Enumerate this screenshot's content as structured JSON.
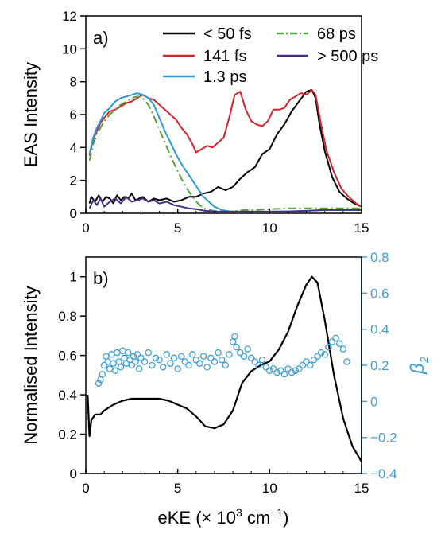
{
  "colors": {
    "black": "#000000",
    "red": "#d0262b",
    "blue": "#2b9ad8",
    "green": "#54a33b",
    "purple": "#4a2d8a",
    "beta": "#3f9fd4"
  },
  "shared_x": {
    "label_prefix": "eKE (× 10",
    "label_sup": "3",
    "label_mid": " cm",
    "label_sup2": "−1",
    "label_suffix": ")"
  },
  "chart_data": [
    {
      "panel": "a)",
      "type": "line",
      "ylabel": "EAS Intensity",
      "xlim": [
        0,
        15
      ],
      "ylim": [
        0,
        12
      ],
      "xticks": [
        0,
        5,
        10,
        15
      ],
      "yticks": [
        0,
        2,
        4,
        6,
        8,
        10,
        12
      ],
      "legend_placement": "top-right",
      "series": [
        {
          "name": "< 50 fs",
          "color": "#000000",
          "dash": "",
          "x": [
            0.2,
            0.3,
            0.5,
            0.7,
            0.9,
            1.1,
            1.3,
            1.5,
            1.7,
            1.9,
            2.1,
            2.3,
            2.5,
            2.7,
            2.9,
            3.1,
            3.4,
            3.7,
            4,
            4.4,
            4.8,
            5.2,
            5.6,
            6,
            6.4,
            6.8,
            7.2,
            7.6,
            8,
            8.4,
            8.8,
            9.2,
            9.6,
            10,
            10.4,
            10.8,
            11.2,
            11.6,
            12,
            12.3,
            12.5,
            12.7,
            13,
            13.4,
            13.8,
            14.2,
            14.6,
            15
          ],
          "y": [
            0.6,
            1.0,
            0.7,
            1.1,
            0.7,
            1.0,
            0.9,
            0.6,
            1.1,
            0.8,
            1.0,
            0.9,
            1.2,
            0.8,
            0.9,
            1.0,
            0.7,
            0.9,
            0.8,
            0.9,
            0.7,
            0.8,
            1.0,
            1.0,
            1.2,
            1.3,
            1.6,
            1.4,
            1.6,
            2.1,
            2.5,
            2.8,
            3.6,
            3.9,
            4.8,
            5.4,
            6.2,
            6.8,
            7.4,
            7.5,
            7.0,
            5.5,
            3.8,
            2.2,
            1.3,
            0.9,
            0.6,
            0.4
          ]
        },
        {
          "name": "141 fs",
          "color": "#d0262b",
          "dash": "",
          "x": [
            0.2,
            0.4,
            0.6,
            0.8,
            1,
            1.3,
            1.6,
            1.9,
            2.2,
            2.5,
            2.8,
            3.1,
            3.4,
            3.7,
            4,
            4.3,
            4.6,
            4.9,
            5.2,
            5.5,
            5.8,
            6,
            6.3,
            6.6,
            6.9,
            7.2,
            7.5,
            7.8,
            8.1,
            8.4,
            8.7,
            9,
            9.3,
            9.6,
            9.9,
            10.2,
            10.5,
            10.8,
            11.1,
            11.4,
            11.7,
            12,
            12.3,
            12.5,
            12.8,
            13.1,
            13.5,
            13.9,
            14.3,
            14.7,
            15
          ],
          "y": [
            3.5,
            4.5,
            5.0,
            5.5,
            5.8,
            6.2,
            6.3,
            6.5,
            6.7,
            6.8,
            7.0,
            7.2,
            7.0,
            6.9,
            6.6,
            6.3,
            6.0,
            5.7,
            5.2,
            4.8,
            4.2,
            3.7,
            3.9,
            4.1,
            4.0,
            4.3,
            4.6,
            5.8,
            7.2,
            7.4,
            6.3,
            5.6,
            5.4,
            5.3,
            5.6,
            6.3,
            6.3,
            6.4,
            6.9,
            7.1,
            7.3,
            7.2,
            7.5,
            7.2,
            5.4,
            3.8,
            2.5,
            1.5,
            1.0,
            0.6,
            0.4
          ]
        },
        {
          "name": "1.3 ps",
          "color": "#2b9ad8",
          "dash": "",
          "x": [
            0.2,
            0.4,
            0.6,
            0.8,
            1,
            1.3,
            1.6,
            1.9,
            2.2,
            2.5,
            2.8,
            3.1,
            3.4,
            3.7,
            4,
            4.3,
            4.6,
            4.9,
            5.2,
            5.5,
            5.8,
            6.1,
            6.4,
            6.7,
            7,
            7.4,
            7.8,
            8.2,
            8.6,
            9,
            10,
            11,
            12,
            13,
            14,
            15
          ],
          "y": [
            3.6,
            4.6,
            5.2,
            5.6,
            6.1,
            6.4,
            6.8,
            7.0,
            7.1,
            7.2,
            7.3,
            7.2,
            7.0,
            6.6,
            5.8,
            5.0,
            4.3,
            3.6,
            3.0,
            2.5,
            2.0,
            1.5,
            1.0,
            0.7,
            0.4,
            0.2,
            0.12,
            0.1,
            0.1,
            0.1,
            0.1,
            0.12,
            0.15,
            0.2,
            0.2,
            0.2
          ]
        },
        {
          "name": "68 ps",
          "color": "#54a33b",
          "dash": "10,4,2,4",
          "x": [
            0.2,
            0.4,
            0.6,
            0.8,
            1,
            1.3,
            1.6,
            1.9,
            2.2,
            2.5,
            2.8,
            3.1,
            3.4,
            3.7,
            4,
            4.3,
            4.6,
            4.9,
            5.2,
            5.5,
            5.8,
            6.1,
            6.4,
            6.7,
            7,
            7.4,
            7.8,
            8.2,
            8.6,
            9,
            10,
            11,
            12,
            13,
            14,
            15
          ],
          "y": [
            3.2,
            4.2,
            4.8,
            5.2,
            5.6,
            6.0,
            6.3,
            6.6,
            6.8,
            7.0,
            7.1,
            7.0,
            6.6,
            5.9,
            5.1,
            4.3,
            3.5,
            2.8,
            2.1,
            1.5,
            1.0,
            0.6,
            0.3,
            0.2,
            0.15,
            0.12,
            0.1,
            0.15,
            0.2,
            0.2,
            0.25,
            0.3,
            0.3,
            0.3,
            0.3,
            0.3
          ]
        },
        {
          "name": "> 500 ps",
          "color": "#4a2d8a",
          "dash": "",
          "x": [
            0.2,
            0.4,
            0.6,
            0.8,
            1,
            1.3,
            1.6,
            1.9,
            2.2,
            2.5,
            2.8,
            3.1,
            3.4,
            3.7,
            4,
            4.4,
            4.8,
            5.2,
            5.6,
            6,
            6.5,
            7,
            7.5,
            8,
            9,
            10,
            11,
            12,
            13,
            14,
            15
          ],
          "y": [
            0.3,
            0.8,
            0.5,
            0.9,
            0.4,
            0.7,
            0.9,
            0.6,
            1.0,
            0.7,
            0.8,
            0.9,
            0.7,
            0.8,
            0.6,
            0.7,
            0.5,
            0.4,
            0.3,
            0.25,
            0.15,
            0.1,
            0.1,
            0.1,
            0.1,
            0.1,
            0.1,
            0.15,
            0.2,
            0.2,
            0.2
          ]
        }
      ]
    },
    {
      "panel": "b)",
      "type": "line",
      "ylabel": "Normalised Intensity",
      "y2label": "β",
      "y2label_sub": "2",
      "xlim": [
        0,
        15
      ],
      "ylim": [
        0,
        1.1
      ],
      "y2lim": [
        -0.4,
        0.8
      ],
      "xticks": [
        0,
        5,
        10,
        15
      ],
      "yticks": [
        0,
        0.2,
        0.4,
        0.6,
        0.8,
        1
      ],
      "y2ticks": [
        -0.4,
        -0.2,
        0,
        0.2,
        0.4,
        0.6,
        0.8
      ],
      "series": [
        {
          "name": "Normalised Intensity",
          "axis": "left",
          "color": "#000000",
          "x": [
            0.1,
            0.2,
            0.3,
            0.5,
            0.8,
            1,
            1.5,
            2,
            2.5,
            3,
            3.5,
            4,
            4.5,
            5,
            5.5,
            6,
            6.5,
            7,
            7.5,
            8,
            8.5,
            9,
            9.5,
            10,
            10.5,
            11,
            11.5,
            12,
            12.3,
            12.6,
            13,
            13.5,
            14,
            14.5,
            15
          ],
          "y": [
            0.4,
            0.19,
            0.27,
            0.3,
            0.3,
            0.32,
            0.35,
            0.37,
            0.38,
            0.38,
            0.38,
            0.38,
            0.37,
            0.35,
            0.33,
            0.29,
            0.24,
            0.23,
            0.25,
            0.32,
            0.46,
            0.52,
            0.55,
            0.57,
            0.63,
            0.72,
            0.85,
            0.96,
            1.0,
            0.97,
            0.78,
            0.5,
            0.28,
            0.14,
            0.06
          ]
        },
        {
          "name": "β2",
          "axis": "right",
          "type": "scatter",
          "color": "#3f9fd4",
          "x": [
            0.7,
            0.8,
            0.9,
            1.0,
            1.1,
            1.2,
            1.3,
            1.4,
            1.5,
            1.6,
            1.7,
            1.8,
            1.9,
            2.0,
            2.1,
            2.2,
            2.3,
            2.4,
            2.5,
            2.6,
            2.7,
            2.8,
            2.9,
            3.0,
            3.2,
            3.4,
            3.6,
            3.8,
            4.0,
            4.2,
            4.4,
            4.6,
            4.8,
            5.0,
            5.2,
            5.4,
            5.6,
            5.8,
            6.0,
            6.2,
            6.4,
            6.6,
            6.8,
            7.0,
            7.2,
            7.4,
            7.6,
            7.8,
            8.0,
            8.1,
            8.2,
            8.4,
            8.6,
            8.8,
            9.0,
            9.2,
            9.4,
            9.6,
            9.8,
            10.0,
            10.2,
            10.4,
            10.6,
            10.8,
            11.0,
            11.2,
            11.4,
            11.6,
            11.8,
            12.0,
            12.2,
            12.4,
            12.6,
            12.8,
            13.0,
            13.2,
            13.4,
            13.6,
            13.8,
            14.0,
            14.2
          ],
          "y": [
            0.1,
            0.12,
            0.15,
            0.2,
            0.25,
            0.22,
            0.18,
            0.26,
            0.21,
            0.17,
            0.27,
            0.22,
            0.19,
            0.28,
            0.24,
            0.21,
            0.27,
            0.23,
            0.2,
            0.25,
            0.22,
            0.26,
            0.18,
            0.24,
            0.22,
            0.27,
            0.2,
            0.24,
            0.23,
            0.19,
            0.26,
            0.21,
            0.24,
            0.18,
            0.25,
            0.22,
            0.2,
            0.26,
            0.23,
            0.21,
            0.25,
            0.19,
            0.24,
            0.22,
            0.27,
            0.23,
            0.2,
            0.26,
            0.33,
            0.36,
            0.3,
            0.27,
            0.25,
            0.29,
            0.24,
            0.22,
            0.2,
            0.23,
            0.19,
            0.17,
            0.18,
            0.16,
            0.17,
            0.15,
            0.18,
            0.16,
            0.17,
            0.18,
            0.2,
            0.22,
            0.2,
            0.23,
            0.25,
            0.27,
            0.26,
            0.3,
            0.33,
            0.35,
            0.32,
            0.29,
            0.22
          ]
        }
      ]
    }
  ]
}
